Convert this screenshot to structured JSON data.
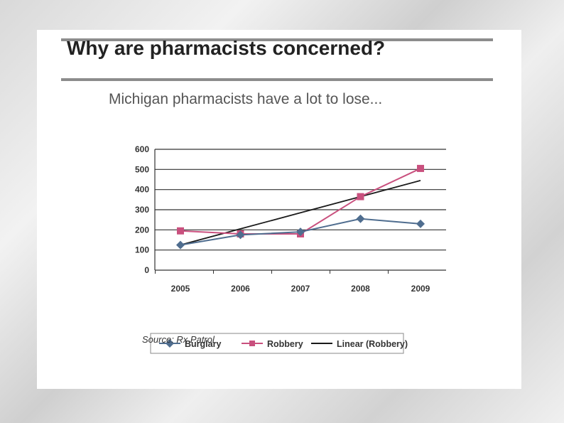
{
  "slide": {
    "title": "Why are pharmacists concerned?",
    "subtitle": "Michigan pharmacists have a lot to lose...",
    "source": "Source: Rx Patrol"
  },
  "chart_data": {
    "type": "line",
    "title": "",
    "xlabel": "",
    "ylabel": "",
    "categories": [
      "2005",
      "2006",
      "2007",
      "2008",
      "2009"
    ],
    "ylim": [
      0,
      600
    ],
    "yticks": [
      "0",
      "100",
      "200",
      "300",
      "400",
      "500",
      "600"
    ],
    "grid": true,
    "legend_position": "bottom",
    "series": [
      {
        "name": "Burglary",
        "values": [
          125,
          175,
          190,
          255,
          230
        ],
        "color": "#4f6d8f",
        "marker": "diamond"
      },
      {
        "name": "Robbery",
        "values": [
          195,
          180,
          180,
          365,
          505
        ],
        "color": "#c9507e",
        "marker": "square"
      },
      {
        "name": "Linear (Robbery)",
        "values": [
          125,
          205,
          285,
          365,
          445
        ],
        "color": "#1a1a1a",
        "marker": "none",
        "trendline": true
      }
    ]
  }
}
